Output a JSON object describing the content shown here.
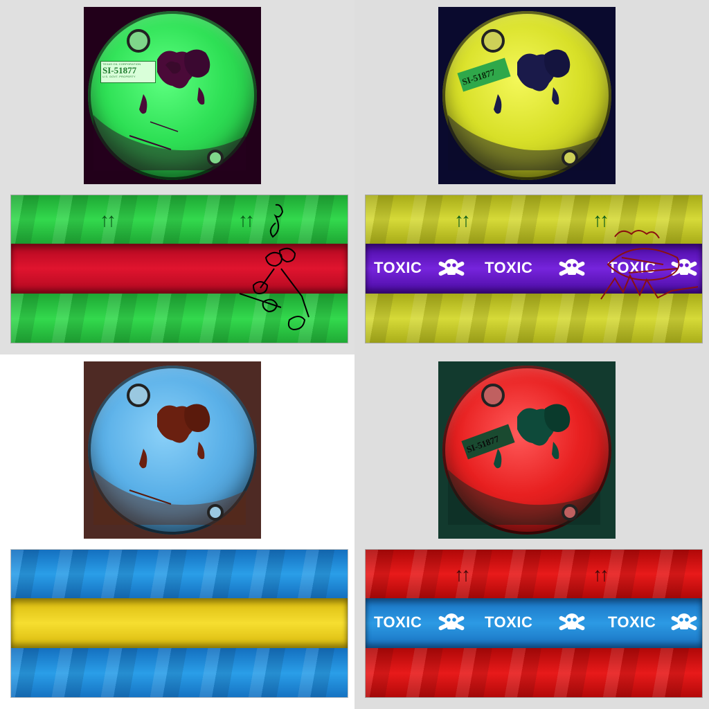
{
  "panels": [
    {
      "id": "green",
      "lid": {
        "bg": "#22001a",
        "color": "#2ee055",
        "rust": "#4a0a38"
      },
      "label": {
        "small_text": "TEXAS OIL CORPORATION",
        "code": "SI-51877",
        "footer": "U.S. GOVT. PROPERTY",
        "bg": "#d9ffd9",
        "ink": "#1f7a2e"
      },
      "strip": {
        "outer": "#22c43a",
        "inner": "#d8102a",
        "arrow_color": "#0a5a1a",
        "arrows": "↑↑",
        "graffiti": "Hauling",
        "graffiti_color": "#000000"
      }
    },
    {
      "id": "yellow",
      "lid": {
        "bg": "#0a0a2e",
        "color": "#d8e028",
        "rust": "#1a1a4a"
      },
      "label": {
        "code": "SI-51877",
        "bg": "#2fa84a",
        "ink": "#0a2a0a"
      },
      "strip": {
        "outer": "#cfd32a",
        "inner": "#6a1ad0",
        "arrow_color": "#0a5a1a",
        "arrows": "↑↑",
        "word": "TOXIC",
        "graffiti": "AMIGAS",
        "graffiti_color": "#8a1010"
      }
    },
    {
      "id": "blue",
      "lid": {
        "bg": "#4e2a24",
        "color": "#5ab0e8",
        "rust": "#6a2010"
      },
      "strip": {
        "outer": "#1f8ee0",
        "inner": "#f0d820"
      }
    },
    {
      "id": "red",
      "lid": {
        "bg": "#123a2e",
        "color": "#e82020",
        "rust": "#0e4a3a"
      },
      "label": {
        "code": "SI-51877",
        "bg": "#1a4a30",
        "ink": "#0a0a0a"
      },
      "strip": {
        "outer": "#e00a0a",
        "inner": "#2090e0",
        "arrow_color": "#3a0a0a",
        "arrows": "↑↑",
        "word": "TOXIC"
      }
    }
  ]
}
